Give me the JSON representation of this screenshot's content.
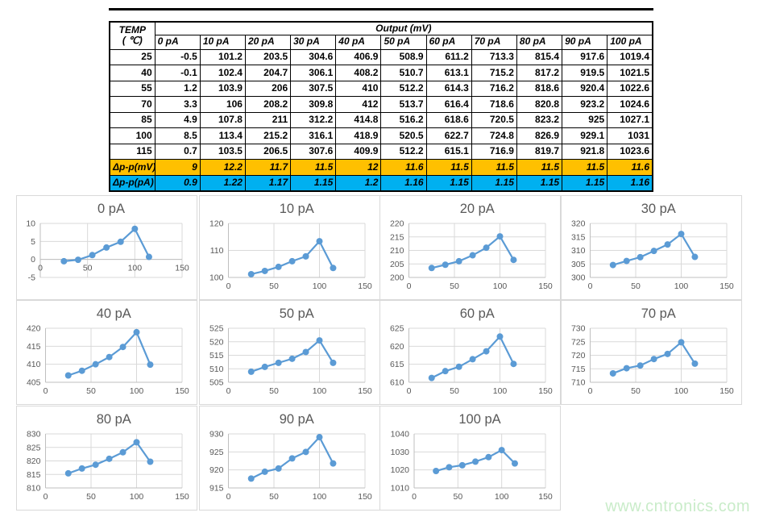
{
  "table": {
    "corner_label_line1": "TEMP",
    "corner_label_line2": "( ℃)",
    "output_header": "Output (mV)",
    "columns": [
      "0 pA",
      "10 pA",
      "20 pA",
      "30 pA",
      "40 pA",
      "50 pA",
      "60 pA",
      "70 pA",
      "80 pA",
      "90 pA",
      "100 pA"
    ],
    "rows": [
      {
        "temp": "25",
        "values": [
          "-0.5",
          "101.2",
          "203.5",
          "304.6",
          "406.9",
          "508.9",
          "611.2",
          "713.3",
          "815.4",
          "917.6",
          "1019.4"
        ]
      },
      {
        "temp": "40",
        "values": [
          "-0.1",
          "102.4",
          "204.7",
          "306.1",
          "408.2",
          "510.7",
          "613.1",
          "715.2",
          "817.2",
          "919.5",
          "1021.5"
        ]
      },
      {
        "temp": "55",
        "values": [
          "1.2",
          "103.9",
          "206",
          "307.5",
          "410",
          "512.2",
          "614.3",
          "716.2",
          "818.6",
          "920.4",
          "1022.6"
        ]
      },
      {
        "temp": "70",
        "values": [
          "3.3",
          "106",
          "208.2",
          "309.8",
          "412",
          "513.7",
          "616.4",
          "718.6",
          "820.8",
          "923.2",
          "1024.6"
        ]
      },
      {
        "temp": "85",
        "values": [
          "4.9",
          "107.8",
          "211",
          "312.2",
          "414.8",
          "516.2",
          "618.6",
          "720.5",
          "823.2",
          "925",
          "1027.1"
        ]
      },
      {
        "temp": "100",
        "values": [
          "8.5",
          "113.4",
          "215.2",
          "316.1",
          "418.9",
          "520.5",
          "622.7",
          "724.8",
          "826.9",
          "929.1",
          "1031"
        ]
      },
      {
        "temp": "115",
        "values": [
          "0.7",
          "103.5",
          "206.5",
          "307.6",
          "409.9",
          "512.2",
          "615.1",
          "716.9",
          "819.7",
          "921.8",
          "1023.6"
        ]
      }
    ],
    "delta_mv": {
      "label": "Δp-p(mV)",
      "values": [
        "9",
        "12.2",
        "11.7",
        "11.5",
        "12",
        "11.6",
        "11.5",
        "11.5",
        "11.5",
        "11.5",
        "11.6"
      ]
    },
    "delta_pa": {
      "label": "Δp-p(pA)",
      "values": [
        "0.9",
        "1.22",
        "1.17",
        "1.15",
        "1.2",
        "1.16",
        "1.15",
        "1.15",
        "1.15",
        "1.15",
        "1.16"
      ]
    }
  },
  "chart_data": [
    {
      "type": "line",
      "title": "0 pA",
      "x": [
        25,
        40,
        55,
        70,
        85,
        100,
        115
      ],
      "values": [
        -0.5,
        -0.1,
        1.2,
        3.3,
        4.9,
        8.5,
        0.7
      ],
      "xlim": [
        0,
        150
      ],
      "ylim": [
        -5,
        10
      ],
      "xticks": [
        0,
        50,
        100,
        150
      ],
      "yticks": [
        -5,
        0,
        5,
        10
      ],
      "axis_cross": 0,
      "grid": true,
      "legend": "none"
    },
    {
      "type": "line",
      "title": "10 pA",
      "x": [
        25,
        40,
        55,
        70,
        85,
        100,
        115
      ],
      "values": [
        101.2,
        102.4,
        103.9,
        106,
        107.8,
        113.4,
        103.5
      ],
      "xlim": [
        0,
        150
      ],
      "ylim": [
        100,
        120
      ],
      "xticks": [
        0,
        50,
        100,
        150
      ],
      "yticks": [
        100,
        110,
        120
      ],
      "grid": true,
      "legend": "none"
    },
    {
      "type": "line",
      "title": "20 pA",
      "x": [
        25,
        40,
        55,
        70,
        85,
        100,
        115
      ],
      "values": [
        203.5,
        204.7,
        206,
        208.2,
        211,
        215.2,
        206.5
      ],
      "xlim": [
        0,
        150
      ],
      "ylim": [
        200,
        220
      ],
      "xticks": [
        0,
        50,
        100,
        150
      ],
      "yticks": [
        200,
        205,
        210,
        215,
        220
      ],
      "grid": true,
      "legend": "none"
    },
    {
      "type": "line",
      "title": "30 pA",
      "x": [
        25,
        40,
        55,
        70,
        85,
        100,
        115
      ],
      "values": [
        304.6,
        306.1,
        307.5,
        309.8,
        312.2,
        316.1,
        307.6
      ],
      "xlim": [
        0,
        150
      ],
      "ylim": [
        300,
        320
      ],
      "xticks": [
        0,
        50,
        100,
        150
      ],
      "yticks": [
        300,
        305,
        310,
        315,
        320
      ],
      "grid": true,
      "legend": "none"
    },
    {
      "type": "line",
      "title": "40 pA",
      "x": [
        25,
        40,
        55,
        70,
        85,
        100,
        115
      ],
      "values": [
        406.9,
        408.2,
        410,
        412,
        414.8,
        418.9,
        409.9
      ],
      "xlim": [
        0,
        150
      ],
      "ylim": [
        405,
        420
      ],
      "xticks": [
        0,
        50,
        100,
        150
      ],
      "yticks": [
        405,
        410,
        415,
        420
      ],
      "grid": true,
      "legend": "none"
    },
    {
      "type": "line",
      "title": "50 pA",
      "x": [
        25,
        40,
        55,
        70,
        85,
        100,
        115
      ],
      "values": [
        508.9,
        510.7,
        512.2,
        513.7,
        516.2,
        520.5,
        512.2
      ],
      "xlim": [
        0,
        150
      ],
      "ylim": [
        505,
        525
      ],
      "xticks": [
        0,
        50,
        100,
        150
      ],
      "yticks": [
        505,
        510,
        515,
        520,
        525
      ],
      "grid": true,
      "legend": "none"
    },
    {
      "type": "line",
      "title": "60 pA",
      "x": [
        25,
        40,
        55,
        70,
        85,
        100,
        115
      ],
      "values": [
        611.2,
        613.1,
        614.3,
        616.4,
        618.6,
        622.7,
        615.1
      ],
      "xlim": [
        0,
        150
      ],
      "ylim": [
        610,
        625
      ],
      "xticks": [
        0,
        50,
        100,
        150
      ],
      "yticks": [
        610,
        615,
        620,
        625
      ],
      "grid": true,
      "legend": "none"
    },
    {
      "type": "line",
      "title": "70 pA",
      "x": [
        25,
        40,
        55,
        70,
        85,
        100,
        115
      ],
      "values": [
        713.3,
        715.2,
        716.2,
        718.6,
        720.5,
        724.8,
        716.9
      ],
      "xlim": [
        0,
        150
      ],
      "ylim": [
        710,
        730
      ],
      "xticks": [
        0,
        50,
        100,
        150
      ],
      "yticks": [
        710,
        715,
        720,
        725,
        730
      ],
      "grid": true,
      "legend": "none"
    },
    {
      "type": "line",
      "title": "80 pA",
      "x": [
        25,
        40,
        55,
        70,
        85,
        100,
        115
      ],
      "values": [
        815.4,
        817.2,
        818.6,
        820.8,
        823.2,
        826.9,
        819.7
      ],
      "xlim": [
        0,
        150
      ],
      "ylim": [
        810,
        830
      ],
      "xticks": [
        0,
        50,
        100,
        150
      ],
      "yticks": [
        810,
        815,
        820,
        825,
        830
      ],
      "grid": true,
      "legend": "none"
    },
    {
      "type": "line",
      "title": "90 pA",
      "x": [
        25,
        40,
        55,
        70,
        85,
        100,
        115
      ],
      "values": [
        917.6,
        919.5,
        920.4,
        923.2,
        925,
        929.1,
        921.8
      ],
      "xlim": [
        0,
        150
      ],
      "ylim": [
        915,
        930
      ],
      "xticks": [
        0,
        50,
        100,
        150
      ],
      "yticks": [
        915,
        920,
        925,
        930
      ],
      "grid": true,
      "legend": "none"
    },
    {
      "type": "line",
      "title": "100 pA",
      "x": [
        25,
        40,
        55,
        70,
        85,
        100,
        115
      ],
      "values": [
        1019.4,
        1021.5,
        1022.6,
        1024.6,
        1027.1,
        1031,
        1023.6
      ],
      "xlim": [
        0,
        150
      ],
      "ylim": [
        1010,
        1040
      ],
      "xticks": [
        0,
        50,
        100,
        150
      ],
      "yticks": [
        1010,
        1020,
        1030,
        1040
      ],
      "grid": true,
      "legend": "none"
    }
  ],
  "watermark": {
    "text": "www.cntronics.com"
  },
  "colors": {
    "line": "#5B9BD5",
    "marker": "#5B9BD5",
    "grid": "#D9D9D9",
    "axis": "#BFBFBF",
    "tick_text": "#595959",
    "title_text": "#595959",
    "table_border": "#000000",
    "delta_mv_bg": "#FFC000",
    "delta_pa_bg": "#00B0F0",
    "chart_border": "#D9D9D9",
    "watermark": "#C9ECC9"
  }
}
